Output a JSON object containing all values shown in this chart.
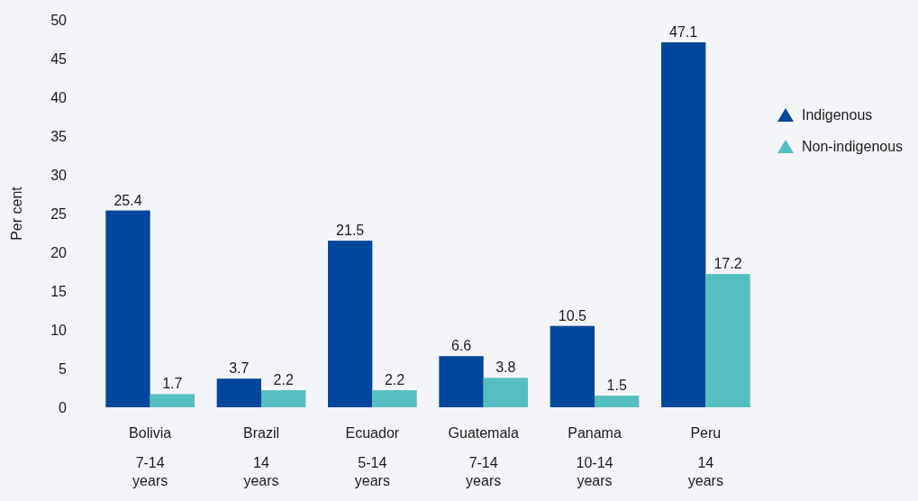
{
  "chart_data": {
    "type": "bar",
    "ylabel": "Per cent",
    "categories": [
      "Bolivia\n7-14\nyears",
      "Brazil\n14\nyears",
      "Ecuador\n5-14\nyears",
      "Guatemala\n7-14\nyears",
      "Panama\n10-14\nyears",
      "Peru\n14\nyears"
    ],
    "series": [
      {
        "name": "Indigenous",
        "color": "#00479b",
        "values": [
          25.4,
          3.7,
          21.5,
          6.6,
          10.5,
          47.1
        ]
      },
      {
        "name": "Non-indigenous",
        "color": "#55bfbf",
        "values": [
          1.7,
          2.2,
          2.2,
          3.8,
          1.5,
          17.2
        ]
      }
    ],
    "ylim": [
      0,
      50
    ],
    "yticks": [
      0,
      5,
      10,
      15,
      20,
      25,
      30,
      35,
      40,
      45,
      50
    ],
    "data_labels": true,
    "grid": false,
    "legend": "right"
  }
}
